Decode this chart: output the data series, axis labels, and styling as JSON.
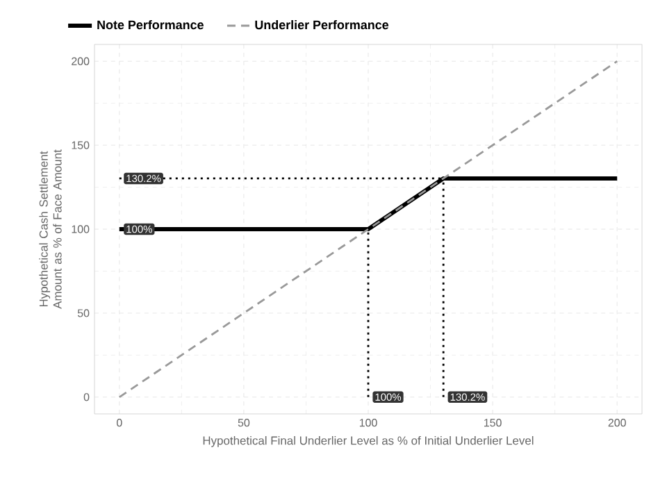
{
  "chart_data": {
    "type": "line",
    "xlabel": "Hypothetical Final Underlier Level as % of Initial Underlier Level",
    "ylabel": "Hypothetical Cash Settlement Amount as % of Face Amount",
    "xlim": [
      -10,
      210
    ],
    "ylim": [
      -10,
      210
    ],
    "xticks": [
      0,
      50,
      100,
      150,
      200
    ],
    "yticks": [
      0,
      50,
      100,
      150,
      200
    ],
    "grid": true,
    "legend": "top",
    "series": [
      {
        "name": "Note Performance",
        "color": "#000000",
        "line_style": "solid",
        "x": [
          0,
          100,
          130.2,
          200
        ],
        "values": [
          100,
          100,
          130.2,
          130.2
        ]
      },
      {
        "name": "Underlier Performance",
        "color": "#999999",
        "line_style": "dashed",
        "x": [
          0,
          200
        ],
        "values": [
          0,
          200
        ]
      },
      {
        "color": "#000000",
        "line_style": "dotted",
        "x": [
          0,
          130.2
        ],
        "values": [
          130.2,
          130.2
        ]
      },
      {
        "color": "#000000",
        "line_style": "dotted",
        "x": [
          100,
          100
        ],
        "values": [
          0,
          100
        ]
      },
      {
        "color": "#000000",
        "line_style": "dotted",
        "x": [
          130.2,
          130.2
        ],
        "values": [
          0,
          130.2
        ]
      }
    ],
    "annotations": [
      {
        "text": "130.2%",
        "x": 0,
        "y": 130.2
      },
      {
        "text": "100%",
        "x": 0,
        "y": 100
      },
      {
        "text": "100%",
        "x": 100,
        "y": 0
      },
      {
        "text": "130.2%",
        "x": 130.2,
        "y": 0
      }
    ]
  }
}
